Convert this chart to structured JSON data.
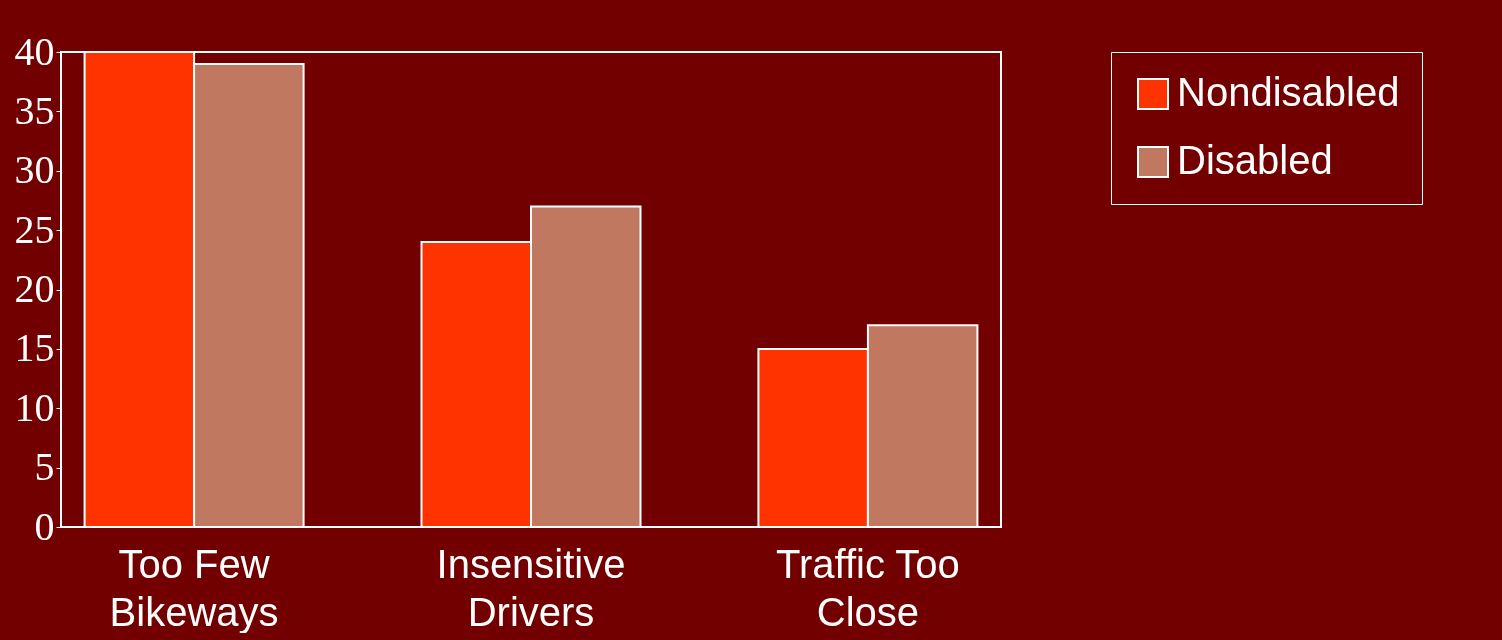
{
  "chart_data": {
    "type": "bar",
    "categories": [
      "Too Few\nBikeways",
      "Insensitive\nDrivers",
      "Traffic Too\nClose"
    ],
    "series": [
      {
        "name": "Nondisabled",
        "color": "#ff3300",
        "values": [
          40,
          24,
          15
        ]
      },
      {
        "name": "Disabled",
        "color": "#c07860",
        "values": [
          39,
          27,
          17
        ]
      }
    ],
    "ylim": [
      0,
      40
    ],
    "yticks": [
      0,
      5,
      10,
      15,
      20,
      25,
      30,
      35,
      40
    ],
    "grid": false,
    "legend": "right"
  }
}
